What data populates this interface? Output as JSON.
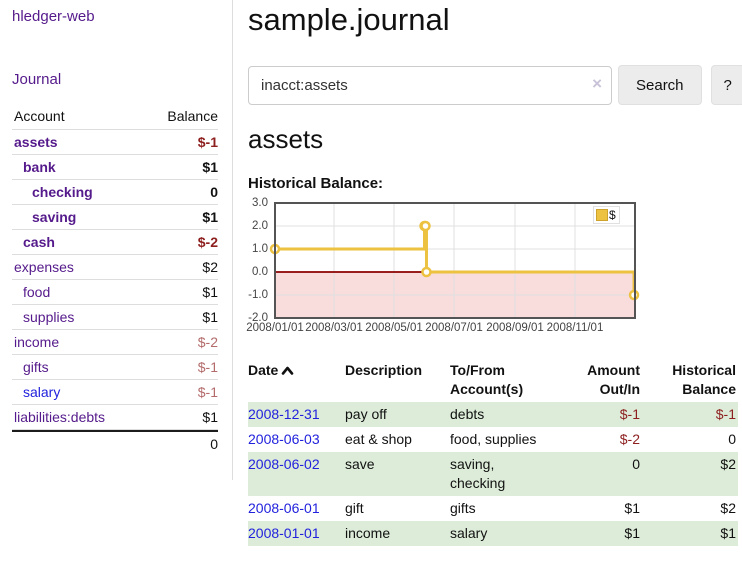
{
  "colors": {
    "link_purple": "#551a8b",
    "link_blue": "#2222dd",
    "negative_dark": "#8d1f1f",
    "negative_soft": "#b36b6b",
    "row_stripe_green": "#ddecd9",
    "chart_line": "#edc240",
    "chart_negative_region": "#f9dcdc",
    "chart_zero_line": "#8b0000",
    "chart_border": "#545454",
    "chart_grid": "#e0e0e0"
  },
  "sidebar": {
    "app_title": "hledger-web",
    "journal_link": "Journal",
    "accounts_table": {
      "col_account": "Account",
      "col_balance": "Balance",
      "rows": [
        {
          "name": "assets",
          "balance": "$-1",
          "depth": 1,
          "bold": true,
          "neg": "dark"
        },
        {
          "name": "bank",
          "balance": "$1",
          "depth": 2,
          "bold": true,
          "neg": ""
        },
        {
          "name": "checking",
          "balance": "0",
          "depth": 3,
          "bold": true,
          "neg": ""
        },
        {
          "name": "saving",
          "balance": "$1",
          "depth": 3,
          "bold": true,
          "neg": ""
        },
        {
          "name": "cash",
          "balance": "$-2",
          "depth": 2,
          "bold": true,
          "neg": "dark"
        },
        {
          "name": "expenses",
          "balance": "$2",
          "depth": 1,
          "bold": false,
          "neg": ""
        },
        {
          "name": "food",
          "balance": "$1",
          "depth": 2,
          "bold": false,
          "neg": ""
        },
        {
          "name": "supplies",
          "balance": "$1",
          "depth": 2,
          "bold": false,
          "neg": ""
        },
        {
          "name": "income",
          "balance": "$-2",
          "depth": 1,
          "bold": false,
          "neg": "soft"
        },
        {
          "name": "gifts",
          "balance": "$-1",
          "depth": 2,
          "bold": false,
          "neg": "soft"
        },
        {
          "name": "salary",
          "balance": "$-1",
          "depth": 2,
          "bold": false,
          "neg": "soft",
          "blue": true
        },
        {
          "name": "liabilities:debts",
          "balance": "$1",
          "depth": 1,
          "bold": false,
          "neg": ""
        }
      ],
      "total": "0"
    }
  },
  "main": {
    "title": "sample.journal",
    "search": {
      "value": "inacct:assets",
      "clear_icon": "×",
      "button_label": "Search",
      "help_label": "?"
    },
    "account_heading": "assets"
  },
  "chart_data": {
    "type": "line",
    "title": "Historical Balance:",
    "legend": [
      {
        "label": "$",
        "color": "#edc240"
      }
    ],
    "legend_position": "top-right",
    "xlim": [
      "2008-01-01",
      "2009-01-01"
    ],
    "ylim": [
      -2,
      3
    ],
    "y_ticks": [
      {
        "v": 3,
        "label": "3.0"
      },
      {
        "v": 2,
        "label": "2.0"
      },
      {
        "v": 1,
        "label": "1.0"
      },
      {
        "v": 0,
        "label": "0.0"
      },
      {
        "v": -1,
        "label": "-1.0"
      },
      {
        "v": -2,
        "label": "-2.0"
      }
    ],
    "x_ticks": [
      {
        "date": "2008-01-01",
        "label": "2008/01/01"
      },
      {
        "date": "2008-03-01",
        "label": "2008/03/01"
      },
      {
        "date": "2008-05-01",
        "label": "2008/05/01"
      },
      {
        "date": "2008-07-01",
        "label": "2008/07/01"
      },
      {
        "date": "2008-09-01",
        "label": "2008/09/01"
      },
      {
        "date": "2008-11-01",
        "label": "2008/11/01"
      }
    ],
    "grid": true,
    "negative_region": true,
    "series": [
      {
        "name": "$",
        "color": "#edc240",
        "steps": true,
        "points": [
          [
            "2008-01-01",
            1
          ],
          [
            "2008-06-01",
            2
          ],
          [
            "2008-06-02",
            2
          ],
          [
            "2008-06-03",
            0
          ],
          [
            "2008-12-31",
            -1
          ]
        ]
      }
    ]
  },
  "register": {
    "headers": {
      "date": "Date",
      "description": "Description",
      "accounts": "To/From Account(s)",
      "amount": "Amount Out/In",
      "balance": "Historical Balance"
    },
    "sort": {
      "column": "date",
      "direction": "ascending"
    },
    "rows": [
      {
        "date": "2008-12-31",
        "description": "pay off",
        "accounts": [
          "debts"
        ],
        "amount": "$-1",
        "amount_neg": true,
        "balance": "$-1",
        "balance_neg": true
      },
      {
        "date": "2008-06-03",
        "description": "eat & shop",
        "accounts": [
          "food, supplies"
        ],
        "amount": "$-2",
        "amount_neg": true,
        "balance": "0",
        "balance_neg": false
      },
      {
        "date": "2008-06-02",
        "description": "save",
        "accounts": [
          "saving,",
          "checking"
        ],
        "amount": "0",
        "amount_neg": false,
        "balance": "$2",
        "balance_neg": false
      },
      {
        "date": "2008-06-01",
        "description": "gift",
        "accounts": [
          "gifts"
        ],
        "amount": "$1",
        "amount_neg": false,
        "balance": "$2",
        "balance_neg": false
      },
      {
        "date": "2008-01-01",
        "description": "income",
        "accounts": [
          "salary"
        ],
        "amount": "$1",
        "amount_neg": false,
        "balance": "$1",
        "balance_neg": false
      }
    ]
  }
}
